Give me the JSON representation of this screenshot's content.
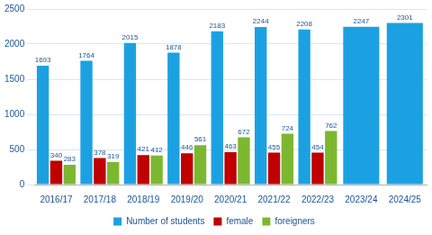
{
  "chart_data": {
    "type": "bar",
    "categories": [
      "2016/17",
      "2017/18",
      "2018/19",
      "2019/20",
      "2020/21",
      "2021/22",
      "2022/23",
      "2023/24",
      "2024/25"
    ],
    "series": [
      {
        "name": "Number of students",
        "color": "#1ba1e2",
        "values": [
          1693,
          1764,
          2015,
          1878,
          2183,
          2244,
          2208,
          2247,
          2301
        ]
      },
      {
        "name": "female",
        "color": "#c00000",
        "values": [
          340,
          378,
          421,
          446,
          463,
          455,
          454,
          null,
          null
        ]
      },
      {
        "name": "foreigners",
        "color": "#7cb82f",
        "values": [
          283,
          319,
          412,
          561,
          672,
          724,
          762,
          null,
          null
        ]
      }
    ],
    "ylim": [
      0,
      2500
    ],
    "yticks": [
      0,
      500,
      1000,
      1500,
      2000,
      2500
    ],
    "grid": true,
    "legend": "bottom",
    "data_labels": true
  }
}
